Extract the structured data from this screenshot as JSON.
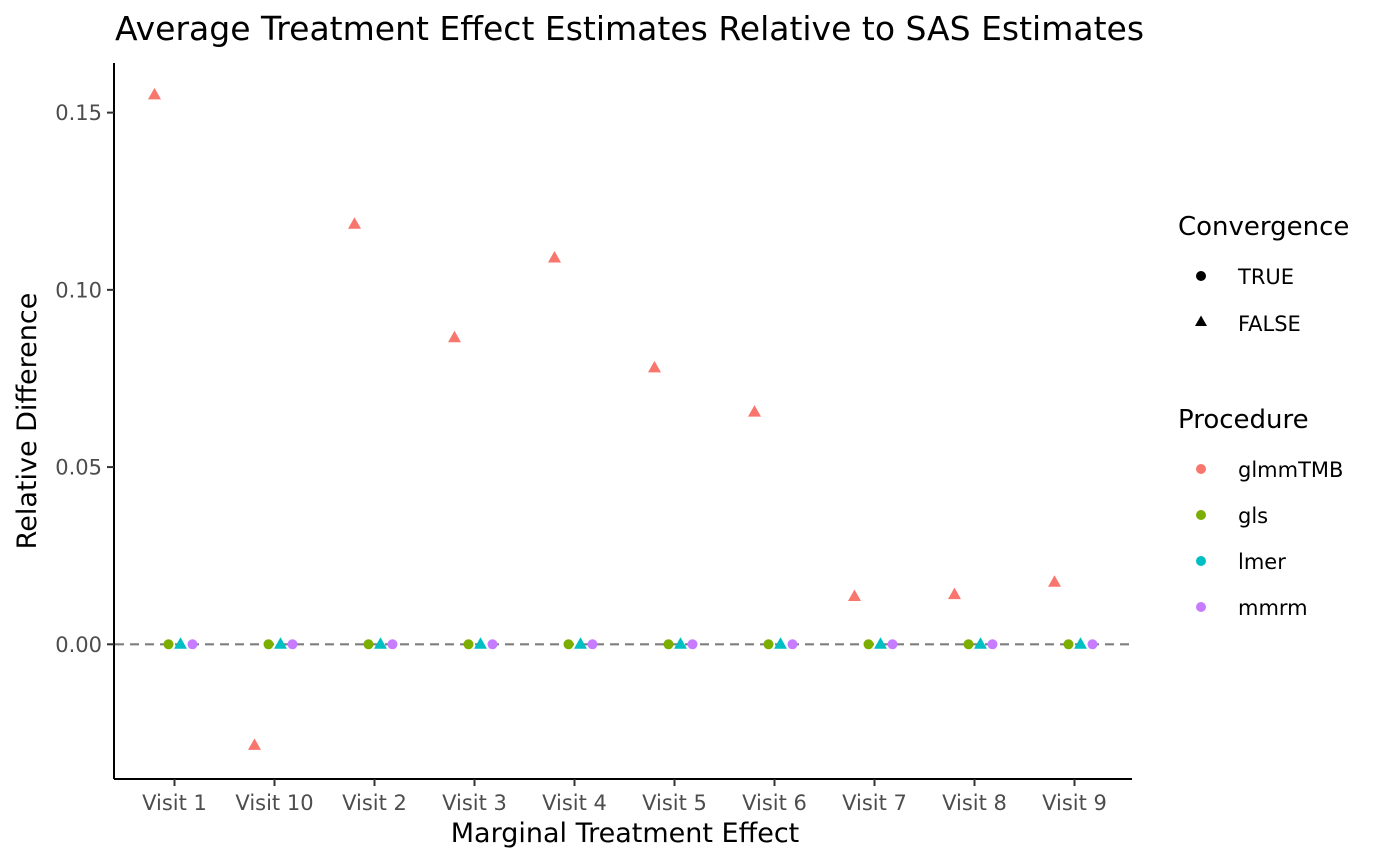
{
  "chart_data": {
    "type": "scatter",
    "title": "Average Treatment Effect Estimates Relative to SAS Estimates",
    "xlabel": "Marginal Treatment Effect",
    "ylabel": "Relative Difference",
    "categories": [
      "Visit 1",
      "Visit 10",
      "Visit 2",
      "Visit 3",
      "Visit 4",
      "Visit 5",
      "Visit 6",
      "Visit 7",
      "Visit 8",
      "Visit 9"
    ],
    "ylim": [
      -0.038,
      0.164
    ],
    "yticks": [
      0.0,
      0.05,
      0.1,
      0.15
    ],
    "ytick_labels": [
      "0.00",
      "0.05",
      "0.10",
      "0.15"
    ],
    "reference_line": {
      "y": 0.0,
      "style": "dashed",
      "color": "#7f7f7f"
    },
    "grid": false,
    "series": [
      {
        "name": "glmmTMB",
        "color": "#F8766D",
        "convergence": "FALSE",
        "values": [
          0.155,
          -0.0285,
          0.1185,
          0.0865,
          0.109,
          0.078,
          0.0655,
          0.0135,
          0.014,
          0.0175
        ]
      },
      {
        "name": "gls",
        "color": "#7CAE00",
        "convergence": "TRUE",
        "values": [
          0,
          0,
          0,
          0,
          0,
          0,
          0,
          0,
          0,
          0
        ]
      },
      {
        "name": "lmer",
        "color": "#00BFC4",
        "convergence": "FALSE",
        "values": [
          0,
          0,
          0,
          0,
          0,
          0,
          0,
          0,
          0,
          0
        ]
      },
      {
        "name": "mmrm",
        "color": "#C77CFF",
        "convergence": "TRUE",
        "values": [
          0,
          0,
          0,
          0,
          0,
          0,
          0,
          0,
          0,
          0
        ]
      }
    ],
    "legend": {
      "placement": "right",
      "groups": [
        {
          "title": "Convergence",
          "items": [
            {
              "label": "TRUE",
              "shape": "circle"
            },
            {
              "label": "FALSE",
              "shape": "triangle"
            }
          ]
        },
        {
          "title": "Procedure",
          "items": [
            {
              "label": "glmmTMB",
              "color": "#F8766D"
            },
            {
              "label": "gls",
              "color": "#7CAE00"
            },
            {
              "label": "lmer",
              "color": "#00BFC4"
            },
            {
              "label": "mmrm",
              "color": "#C77CFF"
            }
          ]
        }
      ]
    }
  }
}
